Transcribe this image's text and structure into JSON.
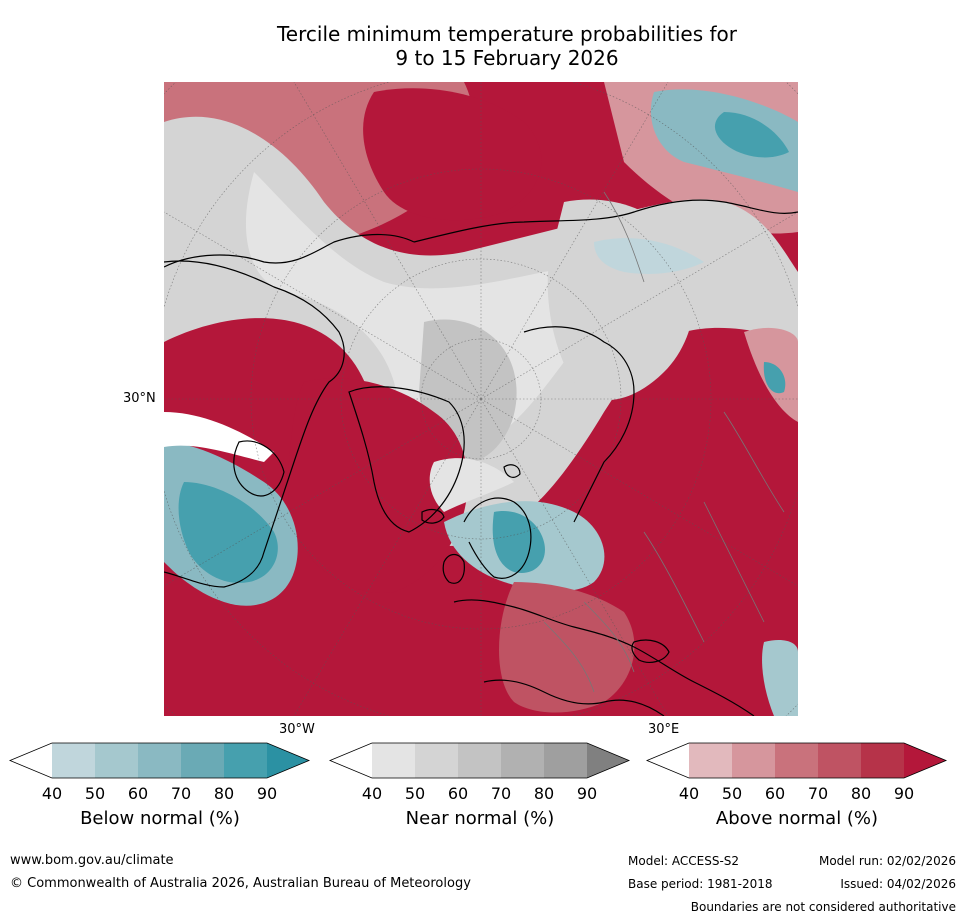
{
  "title": {
    "line1": "Tercile minimum temperature probabilities for",
    "line2": "9 to 15 February 2026"
  },
  "map": {
    "graticule_labels": [
      "30°N",
      "30°W",
      "30°E"
    ],
    "colors": {
      "above": [
        "#e2b9bd",
        "#d6969d",
        "#c9727c",
        "#bf5363",
        "#b63349",
        "#b4173a"
      ],
      "near": [
        "#e4e4e4",
        "#d4d4d4",
        "#c3c3c3",
        "#b1b1b1",
        "#9f9f9f",
        "#808080"
      ],
      "below": [
        "#c0d6dc",
        "#a5c8ce",
        "#8ab9c2",
        "#6aaab5",
        "#46a0ae",
        "#2b91a3"
      ],
      "white": "#ffffff"
    }
  },
  "legends": [
    {
      "key": "below",
      "title": "Below normal (%)",
      "ticks": [
        "40",
        "50",
        "60",
        "70",
        "80",
        "90"
      ]
    },
    {
      "key": "near",
      "title": "Near normal (%)",
      "ticks": [
        "40",
        "50",
        "60",
        "70",
        "80",
        "90"
      ]
    },
    {
      "key": "above",
      "title": "Above normal (%)",
      "ticks": [
        "40",
        "50",
        "60",
        "70",
        "80",
        "90"
      ]
    }
  ],
  "footer": {
    "website": "www.bom.gov.au/climate",
    "copyright": "© Commonwealth of Australia 2026, Australian Bureau of Meteorology",
    "model": "Model: ACCESS-S2",
    "base_period": "Base period: 1981-2018",
    "model_run": "Model run: 02/02/2026",
    "issued": "Issued: 04/02/2026",
    "disclaimer": "Boundaries are not considered authoritative"
  }
}
